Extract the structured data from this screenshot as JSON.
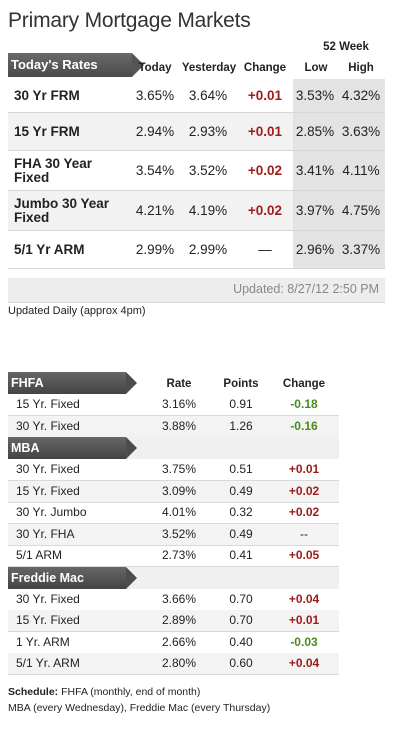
{
  "title": "Primary Mortgage Markets",
  "rates_table": {
    "label": "Today's Rates",
    "week_label": "52 Week",
    "columns": [
      "Today",
      "Yesterday",
      "Change",
      "Low",
      "High"
    ],
    "rows": [
      {
        "name": "30 Yr FRM",
        "today": "3.65%",
        "yesterday": "3.64%",
        "change": "+0.01",
        "low": "3.53%",
        "high": "4.32%"
      },
      {
        "name": "15 Yr FRM",
        "today": "2.94%",
        "yesterday": "2.93%",
        "change": "+0.01",
        "low": "2.85%",
        "high": "3.63%"
      },
      {
        "name": "FHA 30 Year Fixed",
        "today": "3.54%",
        "yesterday": "3.52%",
        "change": "+0.02",
        "low": "3.41%",
        "high": "4.11%"
      },
      {
        "name": "Jumbo 30 Year Fixed",
        "today": "4.21%",
        "yesterday": "4.19%",
        "change": "+0.02",
        "low": "3.97%",
        "high": "4.75%"
      },
      {
        "name": "5/1 Yr ARM",
        "today": "2.99%",
        "yesterday": "2.99%",
        "change": "—",
        "low": "2.96%",
        "high": "3.37%"
      }
    ],
    "updated": "Updated: 8/27/12 2:50 PM"
  },
  "updated_daily": "Updated Daily (approx 4pm)",
  "sources_table": {
    "columns": [
      "Rate",
      "Points",
      "Change"
    ],
    "sections": [
      {
        "name": "FHFA",
        "rows": [
          {
            "product": "15 Yr. Fixed",
            "rate": "3.16%",
            "points": "0.91",
            "change": "-0.18"
          },
          {
            "product": "30 Yr. Fixed",
            "rate": "3.88%",
            "points": "1.26",
            "change": "-0.16"
          }
        ]
      },
      {
        "name": "MBA",
        "rows": [
          {
            "product": "30 Yr. Fixed",
            "rate": "3.75%",
            "points": "0.51",
            "change": "+0.01"
          },
          {
            "product": "15 Yr. Fixed",
            "rate": "3.09%",
            "points": "0.49",
            "change": "+0.02"
          },
          {
            "product": "30 Yr. Jumbo",
            "rate": "4.01%",
            "points": "0.32",
            "change": "+0.02"
          },
          {
            "product": "30 Yr. FHA",
            "rate": "3.52%",
            "points": "0.49",
            "change": "--"
          },
          {
            "product": "5/1 ARM",
            "rate": "2.73%",
            "points": "0.41",
            "change": "+0.05"
          }
        ]
      },
      {
        "name": "Freddie Mac",
        "rows": [
          {
            "product": "30 Yr. Fixed",
            "rate": "3.66%",
            "points": "0.70",
            "change": "+0.04"
          },
          {
            "product": "15 Yr. Fixed",
            "rate": "2.89%",
            "points": "0.70",
            "change": "+0.01"
          },
          {
            "product": "1 Yr. ARM",
            "rate": "2.66%",
            "points": "0.40",
            "change": "-0.03"
          },
          {
            "product": "5/1 Yr. ARM",
            "rate": "2.80%",
            "points": "0.60",
            "change": "+0.04"
          }
        ]
      }
    ]
  },
  "schedule": {
    "label": "Schedule:",
    "line1": "FHFA (monthly, end of month)",
    "line2": "MBA (every Wednesday), Freddie Mac (every Thursday)"
  },
  "colors": {
    "up": "#9e1b1b",
    "down": "#4a8a1c",
    "header": "#555555"
  }
}
